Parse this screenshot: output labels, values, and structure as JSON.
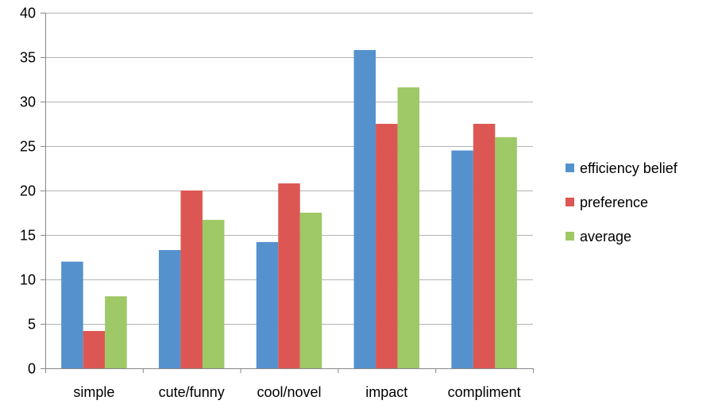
{
  "chart_data": {
    "type": "bar",
    "title": "",
    "xlabel": "",
    "ylabel": "",
    "ylim": [
      0,
      40
    ],
    "yticks": [
      0,
      5,
      10,
      15,
      20,
      25,
      30,
      35,
      40
    ],
    "grid": true,
    "legend": "right",
    "categories": [
      "simple",
      "cute/funny",
      "cool/novel",
      "impact",
      "compliment"
    ],
    "series": [
      {
        "name": "efficiency belief",
        "color": "#5591cd",
        "values": [
          12.0,
          13.3,
          14.2,
          35.8,
          24.5
        ]
      },
      {
        "name": "preference",
        "color": "#dc5753",
        "values": [
          4.2,
          20.0,
          20.8,
          27.5,
          27.5
        ]
      },
      {
        "name": "average",
        "color": "#9fc866",
        "values": [
          8.1,
          16.7,
          17.5,
          31.6,
          26.0
        ]
      }
    ]
  }
}
